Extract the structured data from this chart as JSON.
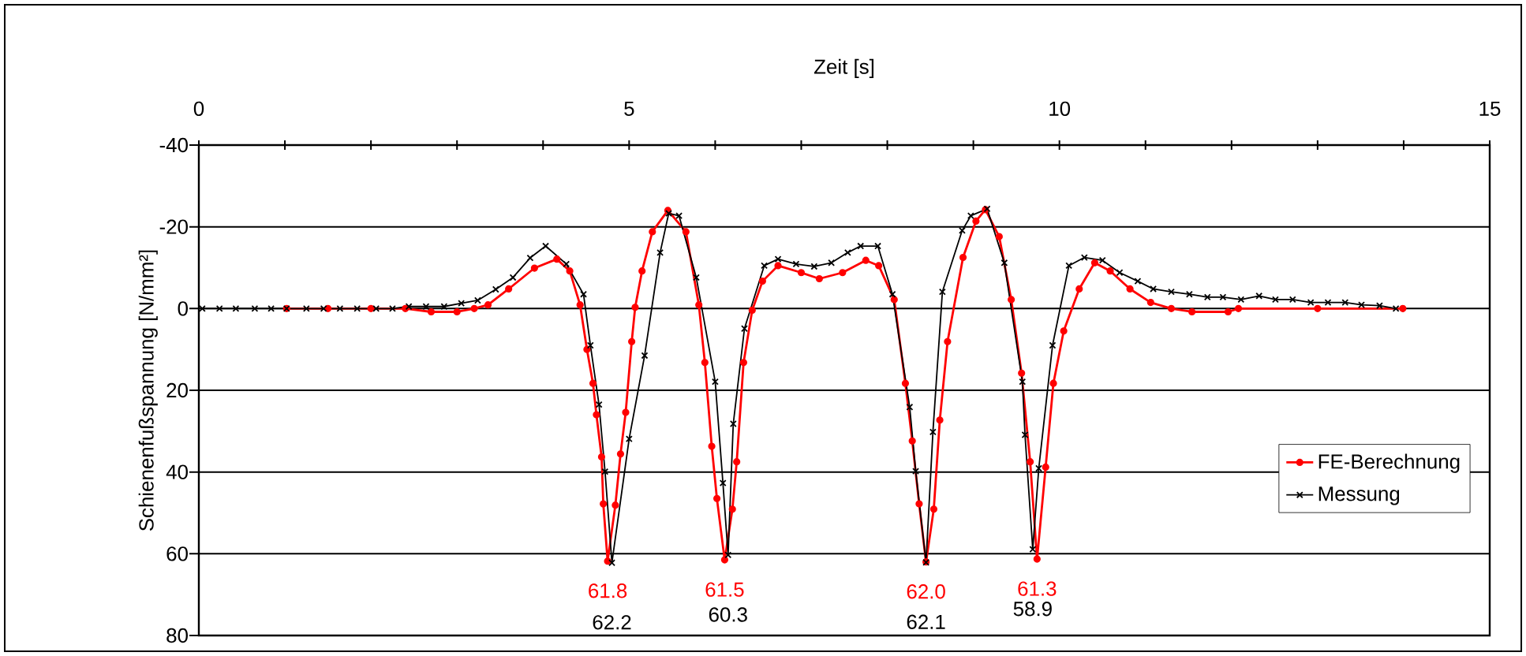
{
  "chart_data": {
    "type": "line",
    "xlabel": "Zeit [s]",
    "ylabel": "Schienenfußspannung [N/mm²]",
    "xlim": [
      0,
      15
    ],
    "xticks": [
      0,
      {
        "value": 1,
        "label": null
      },
      {
        "value": 2,
        "label": null
      },
      {
        "value": 3,
        "label": null
      },
      {
        "value": 4,
        "label": null
      },
      5,
      {
        "value": 6,
        "label": null
      },
      {
        "value": 7,
        "label": null
      },
      {
        "value": 8,
        "label": null
      },
      {
        "value": 9,
        "label": null
      },
      10,
      {
        "value": 11,
        "label": null
      },
      {
        "value": 12,
        "label": null
      },
      {
        "value": 13,
        "label": null
      },
      {
        "value": 14,
        "label": null
      },
      15
    ],
    "ylim": [
      80,
      -40
    ],
    "yticks": [
      -40,
      -20,
      0,
      20,
      40,
      60,
      80
    ],
    "grid": "y",
    "legend": "right",
    "series": [
      {
        "name": "FE-Berechnung",
        "color": "#ff0000",
        "marker": "circle",
        "x": [
          1.02,
          1.5,
          2.0,
          2.4,
          2.7,
          3.0,
          3.2,
          3.36,
          3.6,
          3.9,
          4.16,
          4.31,
          4.43,
          4.51,
          4.58,
          4.62,
          4.68,
          4.7,
          4.75,
          4.84,
          4.9,
          4.96,
          5.03,
          5.07,
          5.15,
          5.27,
          5.45,
          5.66,
          5.81,
          5.88,
          5.96,
          6.02,
          6.11,
          6.2,
          6.25,
          6.33,
          6.43,
          6.55,
          6.73,
          7.0,
          7.21,
          7.48,
          7.75,
          7.9,
          8.08,
          8.21,
          8.29,
          8.37,
          8.45,
          8.54,
          8.61,
          8.7,
          8.88,
          9.03,
          9.14,
          9.3,
          9.44,
          9.56,
          9.66,
          9.74,
          9.84,
          9.93,
          10.05,
          10.23,
          10.41,
          10.59,
          10.82,
          11.06,
          11.3,
          11.54,
          11.96,
          12.08,
          13.0,
          13.99
        ],
        "values": [
          0,
          0,
          0,
          0,
          0.8,
          0.8,
          0,
          -0.9,
          -4.8,
          -9.9,
          -12.1,
          -9.2,
          -0.9,
          10,
          18.3,
          26,
          36.3,
          47.8,
          61.8,
          48.1,
          35.6,
          25.4,
          8.1,
          -0.3,
          -9.2,
          -18.8,
          -24,
          -18.8,
          -0.9,
          13.2,
          33.7,
          46.5,
          61.5,
          49.1,
          37.5,
          13.2,
          0.4,
          -6.7,
          -10.5,
          -8.8,
          -7.3,
          -8.8,
          -11.8,
          -10.5,
          -2.2,
          18.3,
          32.4,
          47.8,
          62.0,
          49.1,
          27.3,
          8.1,
          -12.5,
          -21.4,
          -24.2,
          -17.6,
          -2.2,
          15.8,
          37.5,
          61.3,
          38.8,
          18.3,
          5.5,
          -4.8,
          -11.2,
          -9.2,
          -4.8,
          -1.5,
          0,
          0.8,
          0.8,
          0,
          0,
          0
        ],
        "value_labels": [
          null,
          null,
          null,
          null,
          null,
          null,
          null,
          null,
          null,
          null,
          null,
          null,
          null,
          null,
          null,
          null,
          null,
          null,
          "61.8",
          null,
          null,
          null,
          null,
          null,
          null,
          null,
          null,
          null,
          null,
          null,
          null,
          null,
          "61.5",
          null,
          null,
          null,
          null,
          null,
          null,
          null,
          null,
          null,
          null,
          null,
          null,
          null,
          null,
          null,
          "62.0",
          null,
          null,
          null,
          null,
          null,
          null,
          null,
          null,
          null,
          null,
          "61.3",
          null,
          null,
          null,
          null,
          null,
          null,
          null,
          null,
          null,
          null,
          null,
          null,
          null,
          null
        ]
      },
      {
        "name": "Messung",
        "color": "#000000",
        "marker": "cross",
        "x": [
          0.04,
          0.24,
          0.43,
          0.65,
          0.84,
          1.02,
          1.25,
          1.45,
          1.64,
          1.84,
          2.06,
          2.25,
          2.44,
          2.64,
          2.85,
          3.05,
          3.24,
          3.45,
          3.65,
          3.85,
          4.03,
          4.27,
          4.47,
          4.55,
          4.65,
          4.72,
          4.8,
          5.0,
          5.18,
          5.36,
          5.46,
          5.58,
          5.78,
          6.0,
          6.09,
          6.15,
          6.21,
          6.34,
          6.57,
          6.73,
          6.94,
          7.15,
          7.35,
          7.54,
          7.69,
          7.89,
          8.06,
          8.26,
          8.33,
          8.45,
          8.53,
          8.64,
          8.87,
          8.97,
          9.16,
          9.36,
          9.57,
          9.6,
          9.69,
          9.76,
          9.92,
          10.11,
          10.29,
          10.5,
          10.7,
          10.91,
          11.09,
          11.3,
          11.51,
          11.72,
          11.9,
          12.11,
          12.32,
          12.51,
          12.71,
          12.92,
          13.12,
          13.32,
          13.51,
          13.72,
          13.91
        ],
        "values": [
          0,
          0,
          0,
          0,
          0,
          0,
          0,
          0,
          0,
          0,
          0,
          0,
          -0.5,
          -0.5,
          -0.5,
          -1.3,
          -2,
          -4.7,
          -7.6,
          -12.4,
          -15.3,
          -10.9,
          -3.5,
          9,
          23.5,
          39.9,
          62.2,
          31.9,
          11.5,
          -13.7,
          -23.3,
          -22.7,
          -7.6,
          17.9,
          42.7,
          60.3,
          28.2,
          4.9,
          -10.5,
          -12.1,
          -10.9,
          -10.3,
          -11.2,
          -13.7,
          -15.3,
          -15.3,
          -3.5,
          24.1,
          39.8,
          62.1,
          30.2,
          -4.1,
          -19.1,
          -22.7,
          -24.4,
          -11.2,
          17.9,
          30.9,
          58.9,
          39.1,
          9.0,
          -10.5,
          -12.5,
          -11.8,
          -8.8,
          -6.7,
          -4.8,
          -4.1,
          -3.5,
          -2.8,
          -2.8,
          -2.2,
          -3.1,
          -2.2,
          -2.2,
          -1.5,
          -1.5,
          -1.5,
          -0.9,
          -0.7,
          0
        ],
        "value_labels": [
          null,
          null,
          null,
          null,
          null,
          null,
          null,
          null,
          null,
          null,
          null,
          null,
          null,
          null,
          null,
          null,
          null,
          null,
          null,
          null,
          null,
          null,
          null,
          null,
          null,
          null,
          "62.2",
          null,
          null,
          null,
          null,
          null,
          null,
          null,
          null,
          "60.3",
          null,
          null,
          null,
          null,
          null,
          null,
          null,
          null,
          null,
          null,
          null,
          null,
          null,
          "62.1",
          null,
          null,
          null,
          null,
          null,
          null,
          null,
          null,
          "58.9",
          null,
          null,
          null,
          null,
          null,
          null,
          null,
          null,
          null,
          null,
          null,
          null,
          null,
          null,
          null,
          null,
          null,
          null,
          null,
          null,
          null,
          null
        ]
      }
    ]
  }
}
